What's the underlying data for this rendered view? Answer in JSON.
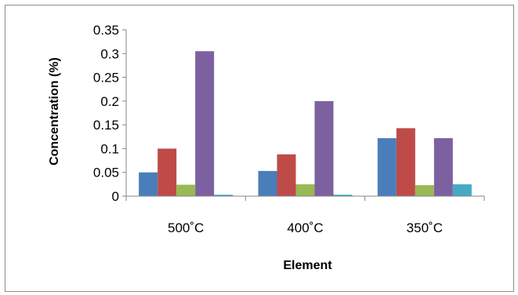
{
  "chart_data": {
    "type": "bar",
    "categories": [
      "500˚C",
      "400˚C",
      "350˚C"
    ],
    "series": [
      {
        "values": [
          0.05,
          0.053,
          0.122
        ],
        "color": "#4a7ebb"
      },
      {
        "values": [
          0.1,
          0.088,
          0.143
        ],
        "color": "#be4b48"
      },
      {
        "values": [
          0.024,
          0.025,
          0.023
        ],
        "color": "#98b954"
      },
      {
        "values": [
          0.305,
          0.2,
          0.122
        ],
        "color": "#7d60a0"
      },
      {
        "values": [
          0.003,
          0.003,
          0.025
        ],
        "color": "#46aac5"
      }
    ],
    "xlabel": "Element",
    "ylabel": "Concentration (%)",
    "ylim": [
      0,
      0.35
    ],
    "yticks": [
      "0",
      "0.05",
      "0.1",
      "0.15",
      "0.2",
      "0.25",
      "0.3",
      "0.35"
    ],
    "grid": false,
    "legend": "none"
  }
}
